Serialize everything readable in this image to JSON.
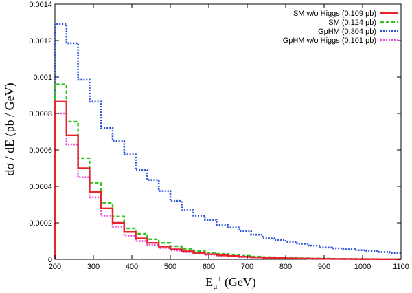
{
  "chart_data": {
    "type": "line",
    "step": true,
    "xlabel": "E",
    "xlabel_sub": "μ",
    "xlabel_sup": "+",
    "xlabel_unit": "(GeV)",
    "ylabel": "dσ / dE (pb / GeV)",
    "xlim": [
      200,
      1100
    ],
    "ylim": [
      0,
      0.0014
    ],
    "xticks": [
      "200",
      "300",
      "400",
      "500",
      "600",
      "700",
      "800",
      "900",
      "1000",
      "1100"
    ],
    "yticks": [
      "0",
      "0.0002",
      "0.0004",
      "0.0006",
      "0.0008",
      "0.001",
      "0.0012",
      "0.0014"
    ],
    "grid": false,
    "legend_position": "top-right",
    "bin_edges": [
      200,
      230,
      260,
      290,
      320,
      350,
      380,
      410,
      440,
      470,
      500,
      530,
      560,
      590,
      620,
      650,
      680,
      710,
      740,
      770,
      800,
      830,
      860,
      890,
      920,
      950,
      980,
      1010,
      1040,
      1070,
      1100
    ],
    "series": [
      {
        "name": "SM w/o Higgs (0.109 pb)",
        "color": "#e8232a",
        "dash": "solid",
        "values": [
          0.000865,
          0.00068,
          0.0005,
          0.00037,
          0.00028,
          0.0002,
          0.00015,
          0.000115,
          9e-05,
          7e-05,
          5.5e-05,
          4.4e-05,
          3.5e-05,
          2.8e-05,
          2.2e-05,
          1.8e-05,
          1.4e-05,
          1.1e-05,
          8.5e-06,
          6.8e-06,
          5.4e-06,
          4.3e-06,
          3.4e-06,
          2.7e-06,
          2.1e-06,
          1.7e-06,
          1.3e-06,
          1e-06,
          8e-07,
          6e-07
        ]
      },
      {
        "name": "SM (0.124 pb)",
        "color": "#2ec41d",
        "dash": "dashed",
        "values": [
          0.00096,
          0.000755,
          0.000555,
          0.00042,
          0.00031,
          0.000235,
          0.00017,
          0.00014,
          0.00011,
          9e-05,
          7.2e-05,
          5.8e-05,
          4.6e-05,
          3.7e-05,
          3e-05,
          2.4e-05,
          1.9e-05,
          1.5e-05,
          1.2e-05,
          9.5e-06,
          7.5e-06,
          6e-06,
          4.8e-06,
          3.8e-06,
          3e-06,
          2.4e-06,
          1.9e-06,
          1.5e-06,
          1.2e-06,
          1e-06
        ]
      },
      {
        "name": "GpHM (0.304 pb)",
        "color": "#2b4fd6",
        "dash": "dotted",
        "values": [
          0.00129,
          0.001185,
          0.000985,
          0.000865,
          0.00072,
          0.00065,
          0.000575,
          0.00049,
          0.000435,
          0.000375,
          0.00032,
          0.00027,
          0.00024,
          0.000215,
          0.00019,
          0.000175,
          0.000155,
          0.000135,
          0.000115,
          0.000105,
          9.5e-05,
          8.5e-05,
          7.5e-05,
          6.5e-05,
          6e-05,
          5.5e-05,
          5e-05,
          4.5e-05,
          4e-05,
          3.5e-05
        ]
      },
      {
        "name": "GpHM w/o Higgs (0.101 pb)",
        "color": "#e64fd9",
        "dash": "dotted",
        "values": [
          0.0008,
          0.00063,
          0.00045,
          0.00034,
          0.00024,
          0.00018,
          0.00013,
          0.0001,
          7.8e-05,
          6.2e-05,
          4.9e-05,
          3.9e-05,
          3.1e-05,
          2.5e-05,
          2e-05,
          1.6e-05,
          1.2e-05,
          9.5e-06,
          7.5e-06,
          6e-06,
          4.8e-06,
          3.8e-06,
          3e-06,
          2.4e-06,
          1.9e-06,
          1.5e-06,
          1.2e-06,
          9e-07,
          7e-07,
          5e-07
        ]
      }
    ]
  }
}
